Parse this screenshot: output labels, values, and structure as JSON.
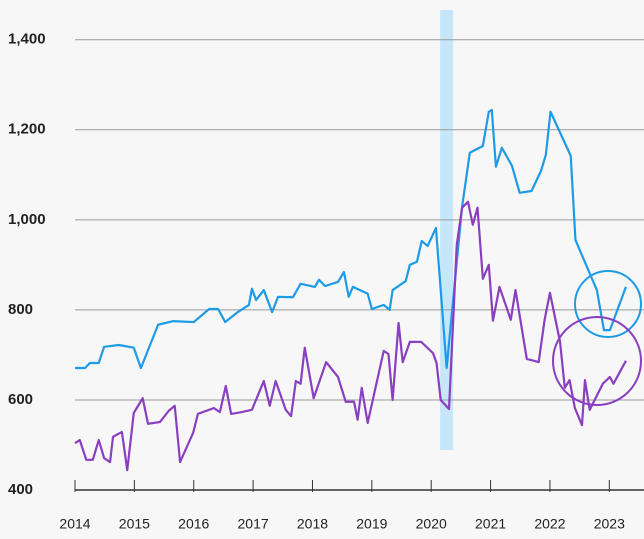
{
  "chart_data": {
    "type": "line",
    "xlim": [
      2014,
      2023.5
    ],
    "ylim": [
      400,
      1466
    ],
    "xticks": [
      2014,
      2015,
      2016,
      2017,
      2018,
      2019,
      2020,
      2021,
      2022,
      2023
    ],
    "yticks": [
      {
        "value": 400,
        "label": "400"
      },
      {
        "value": 600,
        "label": "600"
      },
      {
        "value": 800,
        "label": "800"
      },
      {
        "value": 1000,
        "label": "1,000"
      },
      {
        "value": 1200,
        "label": "1,200"
      },
      {
        "value": 1400,
        "label": "1,400"
      }
    ],
    "grid": true,
    "shaded_range": [
      2020.15,
      2020.37
    ],
    "shaded_color": "#c6e6fa",
    "series": [
      {
        "color": "#1e9be6",
        "x": [
          2014.0,
          2014.17,
          2014.25,
          2014.4,
          2014.49,
          2014.74,
          2014.99,
          2015.11,
          2015.4,
          2015.65,
          2016.0,
          2016.26,
          2016.41,
          2016.53,
          2016.74,
          2016.93,
          2016.98,
          2017.05,
          2017.18,
          2017.32,
          2017.42,
          2017.67,
          2017.8,
          2018.04,
          2018.11,
          2018.21,
          2018.43,
          2018.53,
          2018.61,
          2018.68,
          2018.93,
          2019.0,
          2019.2,
          2019.3,
          2019.35,
          2019.57,
          2019.64,
          2019.76,
          2019.84,
          2019.94,
          2020.08,
          2020.26,
          2020.52,
          2020.65,
          2020.87,
          2020.97,
          2021.02,
          2021.09,
          2021.19,
          2021.36,
          2021.49,
          2021.69,
          2021.85,
          2021.93,
          2022.01,
          2022.35,
          2022.43,
          2022.79,
          2022.91,
          2023.01,
          2023.28
        ],
        "values": [
          671,
          671,
          682,
          682,
          718,
          722,
          716,
          671,
          767,
          775,
          773,
          802,
          802,
          773,
          795,
          811,
          847,
          822,
          844,
          795,
          829,
          828,
          858,
          851,
          867,
          853,
          862,
          884,
          829,
          851,
          836,
          802,
          811,
          800,
          844,
          864,
          900,
          907,
          953,
          942,
          982,
          671,
          1029,
          1149,
          1164,
          1240,
          1244,
          1118,
          1160,
          1120,
          1060,
          1064,
          1109,
          1144,
          1240,
          1142,
          955,
          844,
          755,
          755,
          851
        ]
      },
      {
        "color": "#8a3fc0",
        "x": [
          2014.0,
          2014.08,
          2014.19,
          2014.3,
          2014.4,
          2014.49,
          2014.59,
          2014.64,
          2014.79,
          2014.88,
          2014.99,
          2015.14,
          2015.23,
          2015.43,
          2015.58,
          2015.68,
          2015.77,
          2015.99,
          2016.07,
          2016.34,
          2016.44,
          2016.54,
          2016.63,
          2016.81,
          2016.98,
          2017.18,
          2017.28,
          2017.38,
          2017.55,
          2017.64,
          2017.72,
          2017.8,
          2017.87,
          2018.02,
          2018.23,
          2018.43,
          2018.56,
          2018.7,
          2018.76,
          2018.83,
          2018.93,
          2019.2,
          2019.28,
          2019.35,
          2019.45,
          2019.52,
          2019.64,
          2019.83,
          2020.03,
          2020.09,
          2020.16,
          2020.3,
          2020.43,
          2020.52,
          2020.62,
          2020.7,
          2020.78,
          2020.87,
          2020.97,
          2021.04,
          2021.15,
          2021.34,
          2021.42,
          2021.61,
          2021.81,
          2021.91,
          2022.0,
          2022.17,
          2022.25,
          2022.33,
          2022.42,
          2022.54,
          2022.59,
          2022.67,
          2022.89,
          2023.01,
          2023.07,
          2023.28
        ],
        "values": [
          504,
          511,
          467,
          467,
          511,
          471,
          462,
          518,
          529,
          444,
          571,
          604,
          547,
          551,
          576,
          587,
          462,
          527,
          569,
          582,
          573,
          631,
          569,
          573,
          578,
          642,
          587,
          642,
          578,
          564,
          642,
          636,
          716,
          604,
          684,
          651,
          596,
          596,
          556,
          627,
          549,
          709,
          702,
          600,
          771,
          684,
          729,
          729,
          704,
          682,
          600,
          580,
          944,
          1027,
          1040,
          989,
          1027,
          869,
          900,
          776,
          851,
          778,
          844,
          691,
          684,
          778,
          838,
          729,
          627,
          644,
          582,
          544,
          644,
          578,
          636,
          651,
          636,
          687
        ]
      }
    ]
  }
}
